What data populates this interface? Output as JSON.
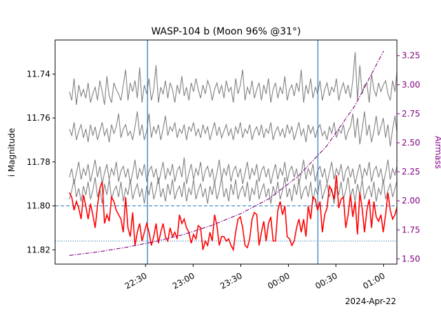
{
  "chart_data": {
    "type": "line",
    "title": "WASP-104 b (Moon 96% @31°)",
    "xlabel": "",
    "x_date_label": "2024-Apr-22",
    "ylabel": "i Magnitude",
    "y2label": "Airmass",
    "x_ticks": [
      {
        "value": 0.5,
        "label": "22:30"
      },
      {
        "value": 1.0,
        "label": "23:00"
      },
      {
        "value": 1.5,
        "label": "23:30"
      },
      {
        "value": 2.0,
        "label": "00:00"
      },
      {
        "value": 2.5,
        "label": "00:30"
      },
      {
        "value": 3.0,
        "label": "01:00"
      }
    ],
    "y_ticks": [
      {
        "value": 11.74,
        "label": "11.74"
      },
      {
        "value": 11.76,
        "label": "11.76"
      },
      {
        "value": 11.78,
        "label": "11.78"
      },
      {
        "value": 11.8,
        "label": "11.80"
      },
      {
        "value": 11.82,
        "label": "11.82"
      }
    ],
    "y2_ticks": [
      {
        "value": 1.5,
        "label": "1.50"
      },
      {
        "value": 1.75,
        "label": "1.75"
      },
      {
        "value": 2.0,
        "label": "2.00"
      },
      {
        "value": 2.25,
        "label": "2.25"
      },
      {
        "value": 2.5,
        "label": "2.50"
      },
      {
        "value": 2.75,
        "label": "2.75"
      },
      {
        "value": 3.0,
        "label": "3.00"
      },
      {
        "value": 3.25,
        "label": "3.25"
      }
    ],
    "xlim": [
      -0.45,
      3.14
    ],
    "ylim": [
      11.8265,
      11.7245
    ],
    "y2lim": [
      1.455,
      3.385
    ],
    "vlines": [
      0.52,
      2.31
    ],
    "hlines": [
      {
        "y": 11.8,
        "style": "dashed"
      },
      {
        "y": 11.816,
        "style": "dotted"
      }
    ],
    "airmass": {
      "x": [
        -0.3,
        0.0,
        0.3,
        0.6,
        0.9,
        1.2,
        1.5,
        1.8,
        2.1,
        2.4,
        2.7,
        3.0
      ],
      "y": [
        1.53,
        1.56,
        1.6,
        1.65,
        1.71,
        1.79,
        1.89,
        2.02,
        2.21,
        2.47,
        2.82,
        3.29
      ]
    },
    "target": {
      "x_start": -0.3,
      "x_step": 0.0246,
      "values": [
        11.794,
        11.796,
        11.802,
        11.798,
        11.801,
        11.806,
        11.795,
        11.8,
        11.806,
        11.799,
        11.804,
        11.81,
        11.8,
        11.792,
        11.789,
        11.808,
        11.804,
        11.807,
        11.796,
        11.798,
        11.802,
        11.804,
        11.806,
        11.812,
        11.796,
        11.81,
        11.814,
        11.803,
        11.818,
        11.812,
        11.808,
        11.816,
        11.812,
        11.808,
        11.812,
        11.818,
        11.814,
        11.808,
        11.817,
        11.812,
        11.808,
        11.814,
        11.816,
        11.81,
        11.814,
        11.812,
        11.815,
        11.804,
        11.808,
        11.806,
        11.81,
        11.812,
        11.817,
        11.813,
        11.815,
        11.809,
        11.81,
        11.82,
        11.816,
        11.818,
        11.812,
        11.816,
        11.804,
        11.809,
        11.818,
        11.814,
        11.814,
        11.816,
        11.815,
        11.818,
        11.82,
        11.812,
        11.806,
        11.805,
        11.81,
        11.818,
        11.819,
        11.815,
        11.806,
        11.803,
        11.804,
        11.818,
        11.812,
        11.807,
        11.816,
        11.808,
        11.805,
        11.816,
        11.816,
        11.802,
        11.798,
        11.804,
        11.8,
        11.814,
        11.815,
        11.818,
        11.816,
        11.81,
        11.806,
        11.812,
        11.806,
        11.814,
        11.8,
        11.806,
        11.796,
        11.797,
        11.802,
        11.798,
        11.812,
        11.804,
        11.801,
        11.791,
        11.793,
        11.797,
        11.786,
        11.801,
        11.797,
        11.796,
        11.81,
        11.804,
        11.795,
        11.805,
        11.798,
        11.813,
        11.794,
        11.801,
        11.812,
        11.802,
        11.797,
        11.81,
        11.798,
        11.805,
        11.807,
        11.804,
        11.812,
        11.804,
        11.794,
        11.802,
        11.806,
        11.804,
        11.8,
        11.797,
        11.813,
        11.796,
        11.798,
        11.808,
        11.804
      ]
    },
    "comparison_stars": [
      {
        "x_start": -0.3,
        "x_step": 0.0246,
        "values": [
          11.748,
          11.752,
          11.742,
          11.754,
          11.745,
          11.75,
          11.747,
          11.751,
          11.744,
          11.753,
          11.749,
          11.746,
          11.752,
          11.743,
          11.748,
          11.754,
          11.741,
          11.75,
          11.753,
          11.744,
          11.747,
          11.749,
          11.752,
          11.745,
          11.738,
          11.752,
          11.744,
          11.748,
          11.743,
          11.751,
          11.737,
          11.753,
          11.745,
          11.749,
          11.742,
          11.752,
          11.747,
          11.736,
          11.753,
          11.746,
          11.749,
          11.743,
          11.751,
          11.744,
          11.747,
          11.753,
          11.745,
          11.749,
          11.741,
          11.75,
          11.746,
          11.752,
          11.744,
          11.748,
          11.742,
          11.747,
          11.751,
          11.745,
          11.749,
          11.743,
          11.746,
          11.752,
          11.747,
          11.744,
          11.749,
          11.745,
          11.751,
          11.743,
          11.748,
          11.746,
          11.753,
          11.742,
          11.749,
          11.745,
          11.738,
          11.752,
          11.746,
          11.749,
          11.743,
          11.751,
          11.747,
          11.744,
          11.752,
          11.745,
          11.749,
          11.742,
          11.753,
          11.747,
          11.744,
          11.751,
          11.746,
          11.749,
          11.741,
          11.752,
          11.747,
          11.745,
          11.75,
          11.744,
          11.748,
          11.738,
          11.753,
          11.745,
          11.749,
          11.742,
          11.751,
          11.746,
          11.749,
          11.743,
          11.752,
          11.747,
          11.744,
          11.75,
          11.746,
          11.748,
          11.742,
          11.752,
          11.747,
          11.744,
          11.749,
          11.745,
          11.751,
          11.743,
          11.73,
          11.752,
          11.736,
          11.749,
          11.745,
          11.744,
          11.753,
          11.74,
          11.747,
          11.75,
          11.744,
          11.748,
          11.745,
          11.743,
          11.749,
          11.752,
          11.743,
          11.748,
          11.737,
          11.753,
          11.746,
          11.749,
          11.75
        ]
      },
      {
        "x_start": -0.3,
        "x_step": 0.0246,
        "values": [
          11.765,
          11.768,
          11.762,
          11.77,
          11.766,
          11.763,
          11.769,
          11.765,
          11.771,
          11.763,
          11.768,
          11.764,
          11.77,
          11.766,
          11.762,
          11.768,
          11.765,
          11.771,
          11.763,
          11.767,
          11.764,
          11.758,
          11.769,
          11.765,
          11.763,
          11.768,
          11.766,
          11.77,
          11.764,
          11.757,
          11.768,
          11.763,
          11.77,
          11.766,
          11.758,
          11.769,
          11.764,
          11.767,
          11.763,
          11.77,
          11.765,
          11.759,
          11.768,
          11.764,
          11.766,
          11.762,
          11.769,
          11.765,
          11.767,
          11.763,
          11.77,
          11.764,
          11.766,
          11.762,
          11.768,
          11.765,
          11.769,
          11.763,
          11.767,
          11.764,
          11.77,
          11.766,
          11.762,
          11.768,
          11.764,
          11.769,
          11.766,
          11.763,
          11.768,
          11.765,
          11.77,
          11.764,
          11.767,
          11.762,
          11.769,
          11.765,
          11.767,
          11.763,
          11.77,
          11.766,
          11.764,
          11.768,
          11.763,
          11.769,
          11.765,
          11.767,
          11.762,
          11.77,
          11.766,
          11.764,
          11.768,
          11.765,
          11.769,
          11.763,
          11.767,
          11.764,
          11.77,
          11.766,
          11.762,
          11.768,
          11.765,
          11.771,
          11.763,
          11.767,
          11.764,
          11.769,
          11.765,
          11.763,
          11.768,
          11.766,
          11.77,
          11.764,
          11.767,
          11.762,
          11.769,
          11.765,
          11.767,
          11.763,
          11.77,
          11.766,
          11.764,
          11.758,
          11.769,
          11.76,
          11.772,
          11.765,
          11.757,
          11.768,
          11.763,
          11.771,
          11.766,
          11.759,
          11.768,
          11.764,
          11.76,
          11.769,
          11.763,
          11.773,
          11.765,
          11.759,
          11.768,
          11.762,
          11.766
        ]
      },
      {
        "x_start": -0.3,
        "x_step": 0.0246,
        "values": [
          11.787,
          11.783,
          11.79,
          11.785,
          11.78,
          11.788,
          11.783,
          11.786,
          11.781,
          11.789,
          11.784,
          11.779,
          11.787,
          11.782,
          11.79,
          11.785,
          11.781,
          11.788,
          11.783,
          11.786,
          11.78,
          11.789,
          11.784,
          11.782,
          11.787,
          11.783,
          11.79,
          11.785,
          11.779,
          11.788,
          11.783,
          11.786,
          11.781,
          11.789,
          11.784,
          11.782,
          11.787,
          11.783,
          11.79,
          11.785,
          11.78,
          11.788,
          11.783,
          11.786,
          11.781,
          11.789,
          11.784,
          11.782,
          11.787,
          11.778,
          11.79,
          11.785,
          11.781,
          11.788,
          11.783,
          11.786,
          11.78,
          11.789,
          11.784,
          11.782,
          11.787,
          11.783,
          11.79,
          11.785,
          11.779,
          11.788,
          11.783,
          11.786,
          11.781,
          11.789,
          11.784,
          11.782,
          11.787,
          11.783,
          11.79,
          11.785,
          11.78,
          11.788,
          11.783,
          11.786,
          11.781,
          11.789,
          11.784,
          11.782,
          11.787,
          11.783,
          11.79,
          11.785,
          11.781,
          11.788,
          11.783,
          11.786,
          11.78,
          11.789,
          11.784,
          11.782,
          11.787,
          11.783,
          11.79,
          11.785,
          11.779,
          11.788,
          11.783,
          11.786,
          11.781,
          11.789,
          11.784,
          11.782,
          11.787,
          11.783,
          11.79,
          11.785,
          11.78,
          11.788,
          11.783,
          11.786,
          11.781,
          11.789,
          11.784,
          11.782,
          11.787,
          11.783,
          11.79,
          11.785,
          11.781,
          11.788,
          11.783,
          11.786,
          11.78,
          11.789,
          11.784,
          11.782,
          11.787,
          11.783,
          11.79,
          11.785,
          11.779,
          11.788,
          11.783,
          11.786,
          11.781,
          11.786,
          11.791
        ]
      },
      {
        "x_start": -0.3,
        "x_step": 0.0246,
        "values": [
          11.797,
          11.793,
          11.788,
          11.796,
          11.792,
          11.798,
          11.791,
          11.795,
          11.789,
          11.797,
          11.793,
          11.787,
          11.796,
          11.792,
          11.799,
          11.79,
          11.795,
          11.788,
          11.797,
          11.793,
          11.791,
          11.796,
          11.789,
          11.798,
          11.792,
          11.795,
          11.788,
          11.797,
          11.793,
          11.79,
          11.796,
          11.792,
          11.799,
          11.791,
          11.795,
          11.789,
          11.797,
          11.793,
          11.787,
          11.796,
          11.792,
          11.798,
          11.79,
          11.795,
          11.788,
          11.797,
          11.793,
          11.791,
          11.796,
          11.789,
          11.798,
          11.792,
          11.795,
          11.788,
          11.797,
          11.793,
          11.79,
          11.796,
          11.792,
          11.799,
          11.791,
          11.795,
          11.789,
          11.797,
          11.793,
          11.787,
          11.796,
          11.792,
          11.798,
          11.79,
          11.795,
          11.788,
          11.797,
          11.793,
          11.791,
          11.796,
          11.789,
          11.798,
          11.792,
          11.795,
          11.788,
          11.797,
          11.793,
          11.79,
          11.796,
          11.792,
          11.799,
          11.791,
          11.795,
          11.789,
          11.797,
          11.793,
          11.787,
          11.796,
          11.792,
          11.798,
          11.79,
          11.795,
          11.788,
          11.797,
          11.793,
          11.791,
          11.796,
          11.789,
          11.798,
          11.792,
          11.795,
          11.788,
          11.797,
          11.793,
          11.79,
          11.796,
          11.792,
          11.799,
          11.791,
          11.795,
          11.789,
          11.797,
          11.793,
          11.787,
          11.796,
          11.792,
          11.798,
          11.79,
          11.795,
          11.788,
          11.797,
          11.793,
          11.791,
          11.796,
          11.789,
          11.798,
          11.792,
          11.795,
          11.788,
          11.797,
          11.793,
          11.79,
          11.796,
          11.792,
          11.788,
          11.792,
          11.796
        ]
      }
    ],
    "colors": {
      "target": "#ff0000",
      "comparison": "#808080",
      "airmass": "#800080",
      "vline": "#1f77b4",
      "hline": "#1f77b4",
      "axis": "#000000"
    }
  }
}
